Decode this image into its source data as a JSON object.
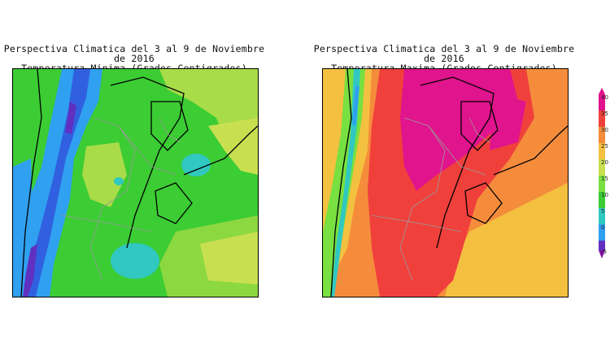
{
  "panels": [
    {
      "title_line1": "Perspectiva Climatica del 3 al 9 de Noviembre de 2016",
      "title_line2": "Temperatura Minima (Grados Centigrados)"
    },
    {
      "title_line1": "Perspectiva Climatica del 3 al 9 de Noviembre de 2016",
      "title_line2": "Temperatura Maxima (Grados Centigrados)"
    }
  ],
  "legend": {
    "ticks": [
      "40",
      "35",
      "30",
      "25",
      "20",
      "15",
      "10",
      "5",
      "0",
      "-5"
    ],
    "colors": {
      "magenta": "#e0148c",
      "red": "#f0403c",
      "orange": "#f48c3c",
      "gold": "#f4c040",
      "yellowgreen": "#c8e050",
      "lightgreen": "#78e040",
      "green": "#3ccc34",
      "teal": "#30c8c0",
      "skyblue": "#30a0f0",
      "blue": "#3060e0",
      "purple": "#6030c0",
      "darkpurple": "#8010a0"
    }
  }
}
